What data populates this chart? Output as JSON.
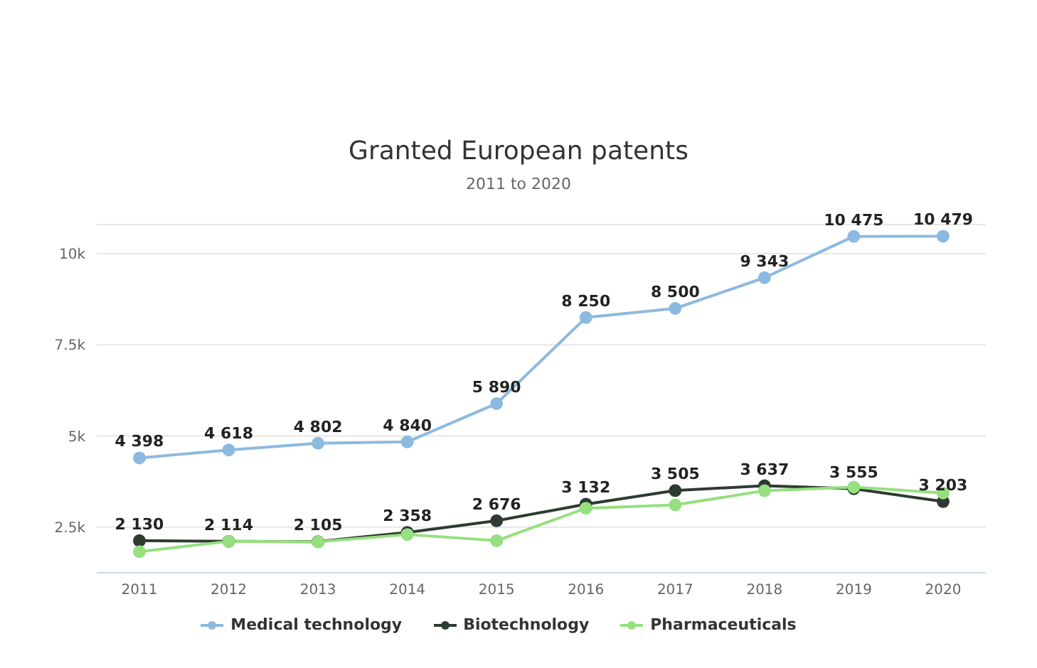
{
  "chart_data": {
    "type": "line",
    "title": "Granted European patents",
    "subtitle": "2011 to 2020",
    "categories": [
      "2011",
      "2012",
      "2013",
      "2014",
      "2015",
      "2016",
      "2017",
      "2018",
      "2019",
      "2020"
    ],
    "series": [
      {
        "name": "Medical technology",
        "color": "#8cb9e0",
        "values": [
          4398,
          4618,
          4802,
          4840,
          5890,
          8250,
          8500,
          9343,
          10475,
          10479
        ],
        "value_labels": [
          "4 398",
          "4 618",
          "4 802",
          "4 840",
          "5 890",
          "8 250",
          "8 500",
          "9 343",
          "10 475",
          "10 479"
        ]
      },
      {
        "name": "Biotechnology",
        "color": "#2f3a30",
        "values": [
          2130,
          2114,
          2105,
          2358,
          2676,
          3132,
          3505,
          3637,
          3555,
          3203
        ],
        "value_labels": [
          "2 130",
          "2 114",
          "2 105",
          "2 358",
          "2 676",
          "3 132",
          "3 505",
          "3 637",
          "3 555",
          "3 203"
        ]
      },
      {
        "name": "Pharmaceuticals",
        "color": "#95e07f",
        "values": [
          1830,
          2110,
          2100,
          2300,
          2130,
          3020,
          3110,
          3500,
          3600,
          3440
        ]
      }
    ],
    "ylim": [
      1250,
      10800
    ],
    "yticks": [
      {
        "value": 2500,
        "label": "2.5k"
      },
      {
        "value": 5000,
        "label": "5k"
      },
      {
        "value": 7500,
        "label": "7.5k"
      },
      {
        "value": 10000,
        "label": "10k"
      }
    ],
    "grid": "y",
    "legend": "bottom",
    "marker": "circle",
    "line_style": "solid"
  }
}
